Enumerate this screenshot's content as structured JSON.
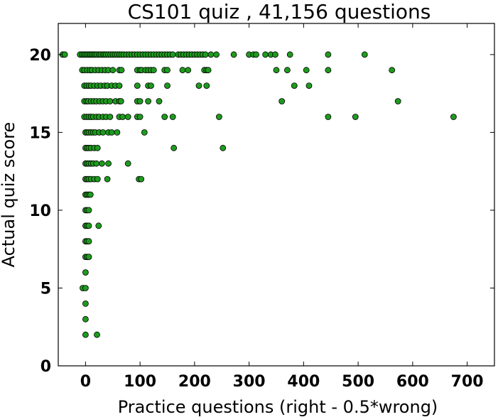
{
  "chart_data": {
    "type": "scatter",
    "title": "CS101 quiz , 41,156 questions",
    "xlabel": "Practice questions (right - 0.5*wrong)",
    "ylabel": "Actual quiz score",
    "xlim": [
      -50,
      750
    ],
    "ylim": [
      0,
      22
    ],
    "xticks": [
      0,
      100,
      200,
      300,
      400,
      500,
      600,
      700
    ],
    "yticks": [
      0,
      5,
      10,
      15,
      20
    ],
    "grid": false,
    "marker_color": "#1e9b1e",
    "marker_edge_color": "#000000",
    "points": [
      [
        -42,
        20
      ],
      [
        -38,
        20
      ],
      [
        -10,
        20
      ],
      [
        -6,
        20
      ],
      [
        -3,
        20
      ],
      [
        0,
        20
      ],
      [
        3,
        20
      ],
      [
        6,
        20
      ],
      [
        9,
        20
      ],
      [
        12,
        20
      ],
      [
        15,
        20
      ],
      [
        18,
        20
      ],
      [
        21,
        20
      ],
      [
        25,
        20
      ],
      [
        28,
        20
      ],
      [
        32,
        20
      ],
      [
        35,
        20
      ],
      [
        38,
        20
      ],
      [
        42,
        20
      ],
      [
        46,
        20
      ],
      [
        50,
        20
      ],
      [
        54,
        20
      ],
      [
        58,
        20
      ],
      [
        62,
        20
      ],
      [
        66,
        20
      ],
      [
        70,
        20
      ],
      [
        75,
        20
      ],
      [
        80,
        20
      ],
      [
        85,
        20
      ],
      [
        90,
        20
      ],
      [
        95,
        20
      ],
      [
        100,
        20
      ],
      [
        105,
        20
      ],
      [
        110,
        20
      ],
      [
        115,
        20
      ],
      [
        120,
        20
      ],
      [
        125,
        20
      ],
      [
        130,
        20
      ],
      [
        135,
        20
      ],
      [
        140,
        20
      ],
      [
        145,
        20
      ],
      [
        150,
        20
      ],
      [
        155,
        20
      ],
      [
        160,
        20
      ],
      [
        170,
        20
      ],
      [
        175,
        20
      ],
      [
        180,
        20
      ],
      [
        185,
        20
      ],
      [
        190,
        20
      ],
      [
        195,
        20
      ],
      [
        200,
        20
      ],
      [
        205,
        20
      ],
      [
        210,
        20
      ],
      [
        215,
        20
      ],
      [
        220,
        20
      ],
      [
        230,
        20
      ],
      [
        240,
        20
      ],
      [
        272,
        20
      ],
      [
        300,
        20
      ],
      [
        308,
        20
      ],
      [
        313,
        20
      ],
      [
        330,
        20
      ],
      [
        340,
        20
      ],
      [
        348,
        20
      ],
      [
        375,
        20
      ],
      [
        445,
        20
      ],
      [
        512,
        20
      ],
      [
        -6,
        19
      ],
      [
        -2,
        19
      ],
      [
        3,
        19
      ],
      [
        8,
        19
      ],
      [
        12,
        19
      ],
      [
        18,
        19
      ],
      [
        24,
        19
      ],
      [
        30,
        19
      ],
      [
        36,
        19
      ],
      [
        42,
        19
      ],
      [
        50,
        19
      ],
      [
        62,
        19
      ],
      [
        66,
        19
      ],
      [
        95,
        19
      ],
      [
        100,
        19
      ],
      [
        103,
        19
      ],
      [
        110,
        19
      ],
      [
        115,
        19
      ],
      [
        120,
        19
      ],
      [
        125,
        19
      ],
      [
        145,
        19
      ],
      [
        150,
        19
      ],
      [
        178,
        19
      ],
      [
        188,
        19
      ],
      [
        218,
        19
      ],
      [
        222,
        19
      ],
      [
        225,
        19
      ],
      [
        350,
        19
      ],
      [
        370,
        19
      ],
      [
        405,
        19
      ],
      [
        445,
        19
      ],
      [
        562,
        19
      ],
      [
        -2,
        18
      ],
      [
        2,
        18
      ],
      [
        6,
        18
      ],
      [
        10,
        18
      ],
      [
        16,
        18
      ],
      [
        22,
        18
      ],
      [
        28,
        18
      ],
      [
        35,
        18
      ],
      [
        40,
        18
      ],
      [
        48,
        18
      ],
      [
        55,
        18
      ],
      [
        62,
        18
      ],
      [
        95,
        18
      ],
      [
        115,
        18
      ],
      [
        120,
        18
      ],
      [
        150,
        18
      ],
      [
        208,
        18
      ],
      [
        222,
        18
      ],
      [
        383,
        18
      ],
      [
        410,
        18
      ],
      [
        -2,
        17
      ],
      [
        2,
        17
      ],
      [
        5,
        17
      ],
      [
        10,
        17
      ],
      [
        15,
        17
      ],
      [
        20,
        17
      ],
      [
        26,
        17
      ],
      [
        32,
        17
      ],
      [
        38,
        17
      ],
      [
        45,
        17
      ],
      [
        55,
        17
      ],
      [
        62,
        17
      ],
      [
        65,
        17
      ],
      [
        95,
        17
      ],
      [
        100,
        17
      ],
      [
        115,
        17
      ],
      [
        135,
        17
      ],
      [
        360,
        17
      ],
      [
        573,
        17
      ],
      [
        -2,
        16
      ],
      [
        2,
        16
      ],
      [
        6,
        16
      ],
      [
        10,
        16
      ],
      [
        14,
        16
      ],
      [
        20,
        16
      ],
      [
        25,
        16
      ],
      [
        32,
        16
      ],
      [
        38,
        16
      ],
      [
        45,
        16
      ],
      [
        62,
        16
      ],
      [
        68,
        16
      ],
      [
        78,
        16
      ],
      [
        95,
        16
      ],
      [
        100,
        16
      ],
      [
        145,
        16
      ],
      [
        160,
        16
      ],
      [
        245,
        16
      ],
      [
        445,
        16
      ],
      [
        495,
        16
      ],
      [
        675,
        16
      ],
      [
        0,
        15
      ],
      [
        3,
        15
      ],
      [
        6,
        15
      ],
      [
        10,
        15
      ],
      [
        14,
        15
      ],
      [
        18,
        15
      ],
      [
        25,
        15
      ],
      [
        32,
        15
      ],
      [
        42,
        15
      ],
      [
        48,
        15
      ],
      [
        58,
        15
      ],
      [
        108,
        15
      ],
      [
        0,
        14
      ],
      [
        3,
        14
      ],
      [
        6,
        14
      ],
      [
        10,
        14
      ],
      [
        16,
        14
      ],
      [
        22,
        14
      ],
      [
        162,
        14
      ],
      [
        252,
        14
      ],
      [
        0,
        13
      ],
      [
        3,
        13
      ],
      [
        6,
        13
      ],
      [
        10,
        13
      ],
      [
        14,
        13
      ],
      [
        20,
        13
      ],
      [
        30,
        13
      ],
      [
        42,
        13
      ],
      [
        78,
        13
      ],
      [
        0,
        12
      ],
      [
        3,
        12
      ],
      [
        6,
        12
      ],
      [
        10,
        12
      ],
      [
        16,
        12
      ],
      [
        22,
        12
      ],
      [
        40,
        12
      ],
      [
        98,
        12
      ],
      [
        102,
        12
      ],
      [
        0,
        11
      ],
      [
        3,
        11
      ],
      [
        6,
        11
      ],
      [
        9,
        11
      ],
      [
        0,
        10
      ],
      [
        3,
        10
      ],
      [
        6,
        10
      ],
      [
        0,
        9
      ],
      [
        3,
        9
      ],
      [
        6,
        9
      ],
      [
        24,
        9
      ],
      [
        0,
        8
      ],
      [
        3,
        8
      ],
      [
        6,
        8
      ],
      [
        0,
        7
      ],
      [
        3,
        7
      ],
      [
        6,
        7
      ],
      [
        0,
        6
      ],
      [
        -5,
        5
      ],
      [
        0,
        5
      ],
      [
        0,
        4
      ],
      [
        0,
        3
      ],
      [
        0,
        2
      ],
      [
        21,
        2
      ]
    ]
  }
}
